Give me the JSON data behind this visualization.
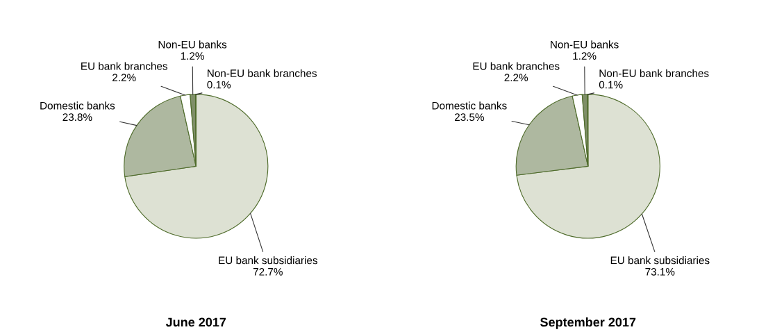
{
  "chart_data": [
    {
      "type": "pie",
      "title": "June 2017",
      "categories": [
        "EU bank subsidiaries",
        "Domestic banks",
        "EU bank branches",
        "Non-EU banks",
        "Non-EU bank branches"
      ],
      "values": [
        72.7,
        23.8,
        2.2,
        1.2,
        0.1
      ],
      "colors": [
        "#dde1d3",
        "#aeb8a0",
        "#ffffff",
        "#7f8f68",
        "#4e6b2a"
      ],
      "value_labels": [
        "72.7%",
        "23.8%",
        "2.2%",
        "1.2%",
        "0.1%"
      ]
    },
    {
      "type": "pie",
      "title": "September 2017",
      "categories": [
        "EU bank subsidiaries",
        "Domestic banks",
        "EU bank branches",
        "Non-EU banks",
        "Non-EU bank branches"
      ],
      "values": [
        73.1,
        23.5,
        2.2,
        1.2,
        0.1
      ],
      "colors": [
        "#dde1d3",
        "#aeb8a0",
        "#ffffff",
        "#7f8f68",
        "#4e6b2a"
      ],
      "value_labels": [
        "73.1%",
        "23.5%",
        "2.2%",
        "1.2%",
        "0.1%"
      ]
    }
  ]
}
